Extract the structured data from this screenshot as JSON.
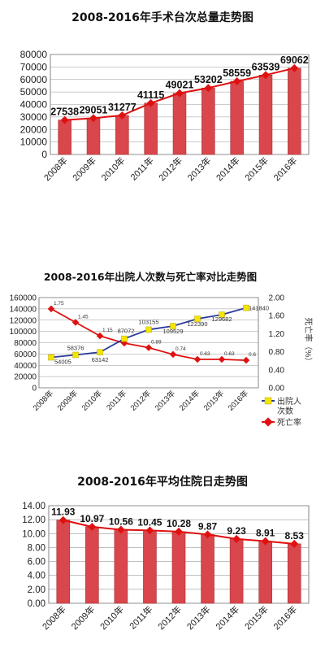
{
  "chart_data": [
    {
      "type": "bar",
      "title": "2008-2016年手术台次总量走势图",
      "categories": [
        "2008年",
        "2009年",
        "2010年",
        "2011年",
        "2012年",
        "2013年",
        "2014年",
        "2015年",
        "2016年"
      ],
      "values": [
        27538,
        29051,
        31277,
        41115,
        49021,
        53202,
        58559,
        63539,
        69062
      ],
      "ylim": [
        0,
        80000
      ],
      "yticks": [
        "0",
        "10000",
        "20000",
        "30000",
        "40000",
        "50000",
        "60000",
        "70000",
        "80000"
      ],
      "overlay_line": true,
      "colors": {
        "bar": "#d9464b",
        "line": "#e01010",
        "marker": "#e01010"
      }
    },
    {
      "type": "line",
      "title": "2008-2016年出院人次数与死亡率对比走势图",
      "categories": [
        "2008年",
        "2009年",
        "2010年",
        "2011年",
        "2012年",
        "2013年",
        "2014年",
        "2015年",
        "2016年"
      ],
      "series": [
        {
          "name": "出院人次数",
          "values": [
            54005,
            58376,
            63142,
            87072,
            103155,
            109529,
            122390,
            129682,
            141840
          ],
          "labels": [
            "54005",
            "58376",
            "63142",
            "87072",
            "103155",
            "109529",
            "122390",
            "129682",
            "141840"
          ],
          "color": "#2a3a9a",
          "marker_color": "#f4e400"
        },
        {
          "name": "死亡率",
          "values": [
            1.75,
            1.45,
            1.15,
            0.99,
            0.89,
            0.74,
            0.63,
            0.63,
            0.61
          ],
          "labels": [
            "1.75",
            "1.45",
            "1.15",
            "",
            "0.89",
            "0.74",
            "0.63",
            "0.63",
            "0.6"
          ],
          "color": "#e01010",
          "marker_color": "#e01010",
          "axis": "right"
        }
      ],
      "ylim": [
        0,
        160000
      ],
      "yticks": [
        "0",
        "20000",
        "40000",
        "60000",
        "80000",
        "100000",
        "120000",
        "140000",
        "160000"
      ],
      "y2lim": [
        0,
        2.0
      ],
      "y2ticks": [
        "0.00",
        "0.40",
        "0.80",
        "1.20",
        "1.60",
        "2.00"
      ],
      "y2label": "死亡率（%）",
      "legend": {
        "placement": "right",
        "items": [
          "出院人次数",
          "死亡率"
        ],
        "first_line1": "出院人",
        "first_line2": "次数"
      }
    },
    {
      "type": "bar",
      "title": "2008-2016年平均住院日走势图",
      "categories": [
        "2008年",
        "2009年",
        "2010年",
        "2011年",
        "2012年",
        "2013年",
        "2014年",
        "2015年",
        "2016年"
      ],
      "values": [
        11.93,
        10.97,
        10.56,
        10.45,
        10.28,
        9.87,
        9.23,
        8.91,
        8.53
      ],
      "labels": [
        "11.93",
        "10.97",
        "10.56",
        "10.45",
        "10.28",
        "9.87",
        "9.23",
        "8.91",
        "8.53"
      ],
      "ylim": [
        0,
        14
      ],
      "yticks": [
        "0.00",
        "2.00",
        "4.00",
        "6.00",
        "8.00",
        "10.00",
        "12.00",
        "14.00"
      ],
      "overlay_line": true,
      "colors": {
        "bar": "#d9464b",
        "line": "#e01010",
        "marker": "#e01010"
      }
    }
  ]
}
